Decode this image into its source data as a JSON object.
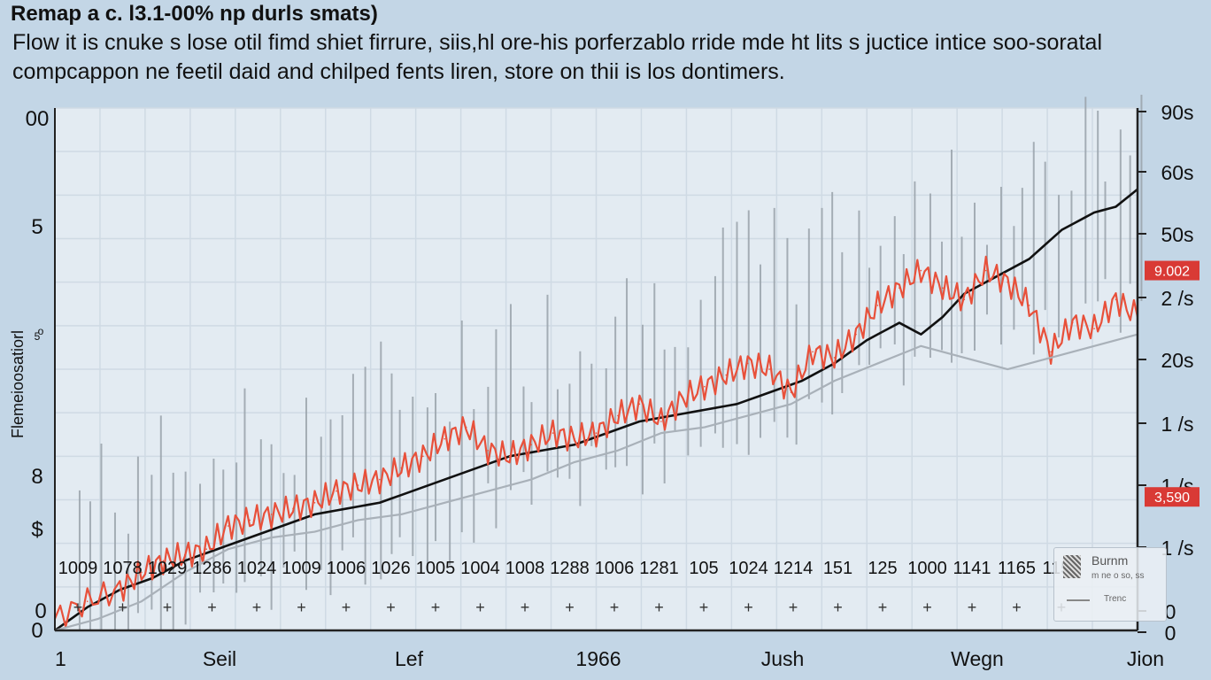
{
  "chart_data": {
    "type": "line",
    "title": "Remap a c. l3.1-00% np durls smats)",
    "subtitle": "Flow it is cnuke s lose otil fimd shiet firrure, siis,hl ore-his porferzablo rride mde ht lits s juctice intice soo-soratal compcappon ne feetil daid and chilped fents liren, store on thii is los dontimers.",
    "ylabel": "Flemeioosatiorl",
    "ylabel_marker": "o",
    "x_ticks": [
      "1",
      "Seil",
      "Lef",
      "1966",
      "Jush",
      "Wegn",
      "Jion"
    ],
    "y_left_ticks": [
      "00",
      "5",
      "5",
      "8",
      "$",
      "0"
    ],
    "y_right_ticks": [
      "90s",
      "60s",
      "50s",
      "2 /s",
      "20s",
      "1 /s",
      "1 /s",
      "1 /s",
      "0",
      "0"
    ],
    "bottom_labels": [
      "1009",
      "1078",
      "1029",
      "1286",
      "1024",
      "1009",
      "1006",
      "1026",
      "1005",
      "1004",
      "1008",
      "1288",
      "1006",
      "1281",
      "105",
      "1024",
      "1214",
      "151",
      "125",
      "1000",
      "1141",
      "1165",
      "1150"
    ],
    "callouts": [
      {
        "text": "9.002",
        "y": 62
      },
      {
        "text": "3,590",
        "y": 23
      }
    ],
    "y_domain": [
      0,
      90
    ],
    "series": [
      {
        "name": "",
        "color": "#111111",
        "values": [
          [
            0,
            0
          ],
          [
            3,
            4
          ],
          [
            6,
            7
          ],
          [
            9,
            9
          ],
          [
            12,
            12
          ],
          [
            15,
            14
          ],
          [
            18,
            16
          ],
          [
            21,
            18
          ],
          [
            24,
            20
          ],
          [
            27,
            21
          ],
          [
            30,
            22
          ],
          [
            33,
            24
          ],
          [
            36,
            26
          ],
          [
            39,
            28
          ],
          [
            42,
            30
          ],
          [
            45,
            31
          ],
          [
            48,
            32
          ],
          [
            51,
            34
          ],
          [
            54,
            36
          ],
          [
            57,
            37
          ],
          [
            60,
            38
          ],
          [
            63,
            39
          ],
          [
            66,
            41
          ],
          [
            69,
            43
          ],
          [
            72,
            46
          ],
          [
            75,
            50
          ],
          [
            78,
            53
          ],
          [
            80,
            51
          ],
          [
            82,
            54
          ],
          [
            84,
            58
          ],
          [
            86,
            60
          ],
          [
            88,
            62
          ],
          [
            90,
            64
          ],
          [
            93,
            69
          ],
          [
            96,
            72
          ],
          [
            98,
            73
          ],
          [
            100,
            76
          ]
        ]
      },
      {
        "name": "",
        "color": "#e8503a",
        "values": [
          [
            0,
            2
          ],
          [
            3,
            5
          ],
          [
            6,
            7
          ],
          [
            8,
            10
          ],
          [
            10,
            12
          ],
          [
            12,
            13
          ],
          [
            14,
            14
          ],
          [
            16,
            18
          ],
          [
            18,
            19
          ],
          [
            20,
            20
          ],
          [
            22,
            21
          ],
          [
            24,
            22
          ],
          [
            26,
            24
          ],
          [
            28,
            25
          ],
          [
            30,
            26
          ],
          [
            32,
            28
          ],
          [
            34,
            30
          ],
          [
            36,
            33
          ],
          [
            38,
            35
          ],
          [
            40,
            31
          ],
          [
            42,
            30
          ],
          [
            44,
            32
          ],
          [
            46,
            34
          ],
          [
            48,
            33
          ],
          [
            50,
            34
          ],
          [
            52,
            37
          ],
          [
            54,
            39
          ],
          [
            56,
            36
          ],
          [
            58,
            40
          ],
          [
            60,
            42
          ],
          [
            62,
            44
          ],
          [
            64,
            46
          ],
          [
            66,
            45
          ],
          [
            68,
            41
          ],
          [
            70,
            48
          ],
          [
            72,
            47
          ],
          [
            74,
            51
          ],
          [
            76,
            56
          ],
          [
            78,
            59
          ],
          [
            80,
            62
          ],
          [
            82,
            59
          ],
          [
            84,
            57
          ],
          [
            86,
            62
          ],
          [
            88,
            60
          ],
          [
            90,
            56
          ],
          [
            92,
            48
          ],
          [
            94,
            53
          ],
          [
            96,
            52
          ],
          [
            98,
            57
          ],
          [
            100,
            54
          ]
        ]
      },
      {
        "name": "",
        "color": "#a9b1b9",
        "values": [
          [
            0,
            0
          ],
          [
            4,
            2
          ],
          [
            8,
            5
          ],
          [
            12,
            10
          ],
          [
            16,
            14
          ],
          [
            20,
            16
          ],
          [
            24,
            17
          ],
          [
            28,
            19
          ],
          [
            32,
            20
          ],
          [
            36,
            22
          ],
          [
            40,
            24
          ],
          [
            44,
            26
          ],
          [
            48,
            29
          ],
          [
            52,
            31
          ],
          [
            56,
            34
          ],
          [
            60,
            35
          ],
          [
            64,
            37
          ],
          [
            68,
            39
          ],
          [
            72,
            43
          ],
          [
            76,
            46
          ],
          [
            80,
            49
          ],
          [
            84,
            47
          ],
          [
            88,
            45
          ],
          [
            92,
            47
          ],
          [
            96,
            49
          ],
          [
            100,
            51
          ]
        ]
      }
    ]
  }
}
